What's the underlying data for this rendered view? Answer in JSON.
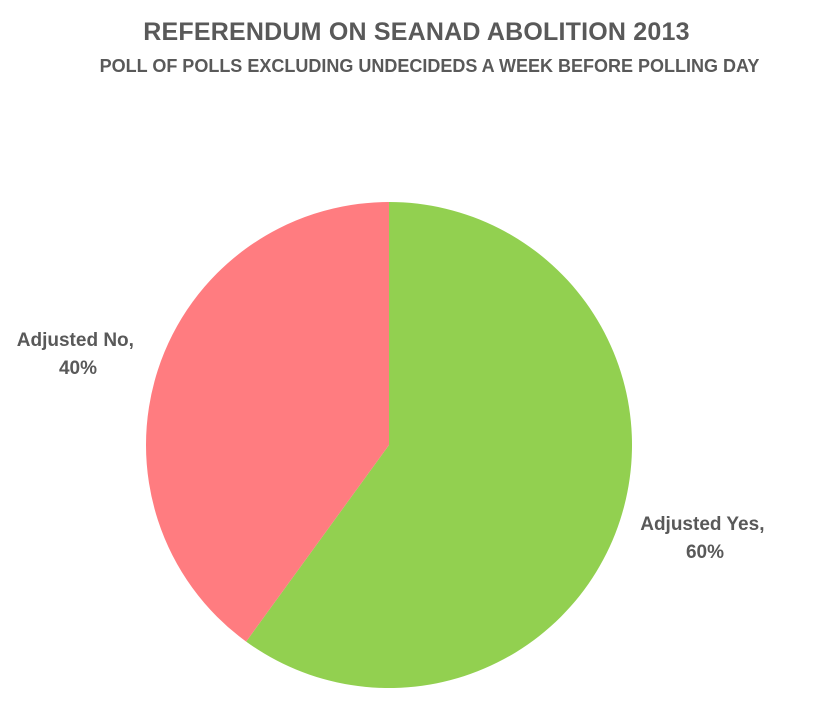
{
  "chart_data": {
    "type": "pie",
    "title": "REFERENDUM ON SEANAD ABOLITION 2013",
    "subtitle": "POLL OF POLLS EXCLUDING UNDECIDEDS A WEEK BEFORE POLLING DAY",
    "slices": [
      {
        "label": "Adjusted Yes",
        "value": 60,
        "value_text": "60%",
        "color": "#92D050"
      },
      {
        "label": "Adjusted No",
        "value": 40,
        "value_text": "40%",
        "color": "#FF7C80"
      }
    ],
    "legend": "none"
  }
}
